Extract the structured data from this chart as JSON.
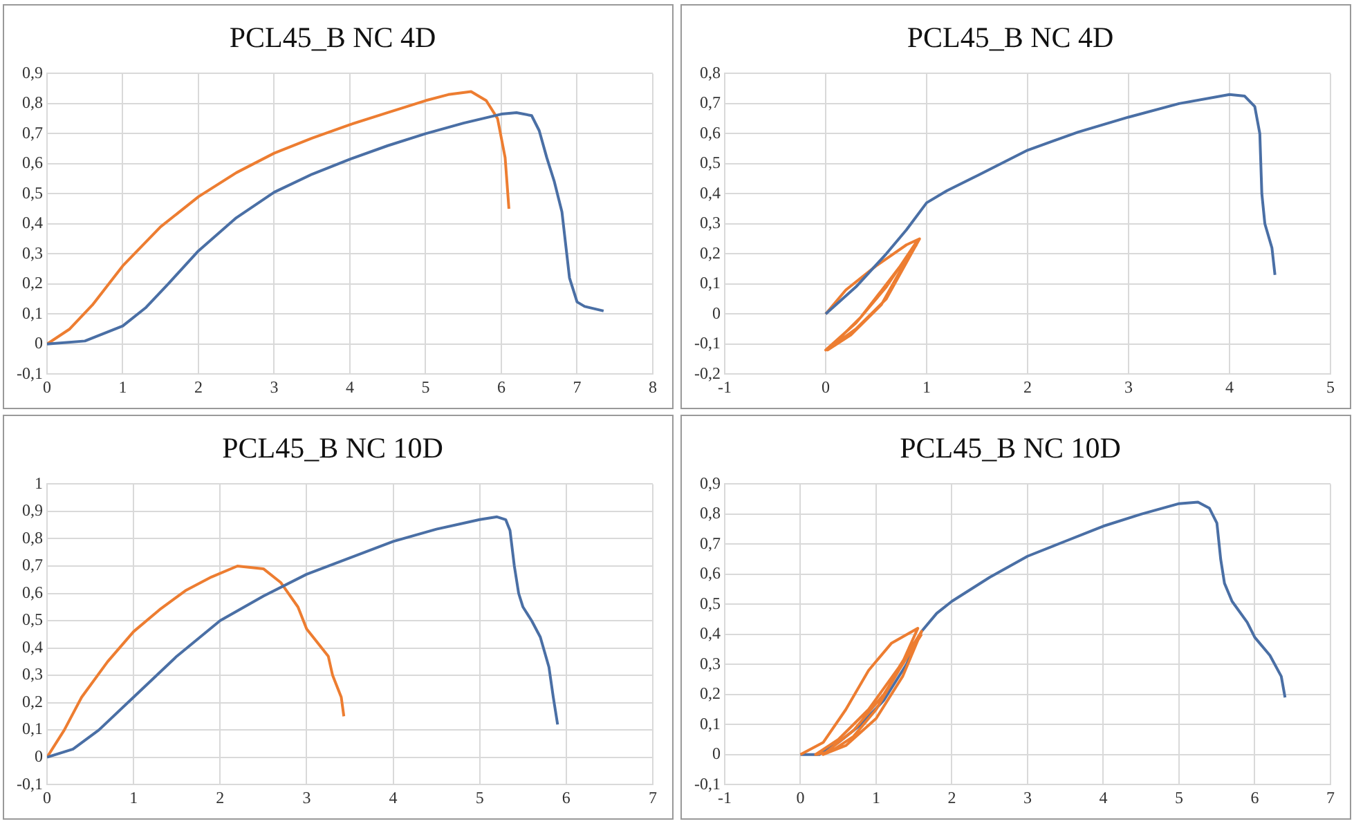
{
  "chart_data": [
    {
      "type": "line",
      "title": "PCL45_B NC 4D",
      "grid": true,
      "marker": "none",
      "legend": false,
      "xlim": [
        0,
        8
      ],
      "xticks": [
        0,
        1,
        2,
        3,
        4,
        5,
        6,
        7,
        8
      ],
      "ylim": [
        -0.1,
        0.9
      ],
      "yticks": [
        {
          "value": -0.1,
          "label": "-0,1"
        },
        {
          "value": 0,
          "label": "0"
        },
        {
          "value": 0.1,
          "label": "0,1"
        },
        {
          "value": 0.2,
          "label": "0,2"
        },
        {
          "value": 0.3,
          "label": "0,3"
        },
        {
          "value": 0.4,
          "label": "0,4"
        },
        {
          "value": 0.5,
          "label": "0,5"
        },
        {
          "value": 0.6,
          "label": "0,6"
        },
        {
          "value": 0.7,
          "label": "0,7"
        },
        {
          "value": 0.8,
          "label": "0,8"
        },
        {
          "value": 0.9,
          "label": "0,9"
        }
      ],
      "series": [
        {
          "color": "#4a6fa5",
          "x": [
            0,
            0.5,
            1,
            1.3,
            1.6,
            2,
            2.5,
            3,
            3.5,
            4,
            4.5,
            5,
            5.5,
            6,
            6.2,
            6.4,
            6.5,
            6.6,
            6.7,
            6.8,
            6.85,
            6.9,
            7,
            7.1,
            7.35
          ],
          "values": [
            0,
            0.01,
            0.06,
            0.12,
            0.2,
            0.31,
            0.42,
            0.505,
            0.565,
            0.615,
            0.66,
            0.7,
            0.735,
            0.765,
            0.77,
            0.76,
            0.71,
            0.62,
            0.54,
            0.44,
            0.33,
            0.22,
            0.14,
            0.125,
            0.11
          ]
        },
        {
          "color": "#ed7d31",
          "x": [
            0,
            0.3,
            0.6,
            1,
            1.5,
            2,
            2.5,
            3,
            3.5,
            4,
            4.5,
            5,
            5.3,
            5.6,
            5.8,
            5.95,
            6.05,
            6.1
          ],
          "values": [
            0,
            0.05,
            0.13,
            0.26,
            0.39,
            0.49,
            0.57,
            0.635,
            0.685,
            0.73,
            0.77,
            0.81,
            0.83,
            0.84,
            0.81,
            0.75,
            0.62,
            0.45
          ]
        }
      ]
    },
    {
      "type": "line",
      "title": "PCL45_B NC 4D",
      "grid": true,
      "marker": "none",
      "legend": false,
      "xlim": [
        -1,
        5
      ],
      "xticks": [
        -1,
        0,
        1,
        2,
        3,
        4,
        5
      ],
      "ylim": [
        -0.2,
        0.8
      ],
      "yticks": [
        {
          "value": -0.2,
          "label": "-0,2"
        },
        {
          "value": -0.1,
          "label": "-0,1"
        },
        {
          "value": 0,
          "label": "0"
        },
        {
          "value": 0.1,
          "label": "0,1"
        },
        {
          "value": 0.2,
          "label": "0,2"
        },
        {
          "value": 0.3,
          "label": "0,3"
        },
        {
          "value": 0.4,
          "label": "0,4"
        },
        {
          "value": 0.5,
          "label": "0,5"
        },
        {
          "value": 0.6,
          "label": "0,6"
        },
        {
          "value": 0.7,
          "label": "0,7"
        },
        {
          "value": 0.8,
          "label": "0,8"
        }
      ],
      "series": [
        {
          "color": "#4a6fa5",
          "x": [
            0,
            0.3,
            0.6,
            0.8,
            1,
            1.2,
            1.5,
            2,
            2.5,
            3,
            3.5,
            4,
            4.15,
            4.25,
            4.3,
            4.32,
            4.35,
            4.42,
            4.45
          ],
          "values": [
            0,
            0.09,
            0.2,
            0.28,
            0.37,
            0.41,
            0.46,
            0.545,
            0.605,
            0.655,
            0.7,
            0.73,
            0.725,
            0.69,
            0.6,
            0.4,
            0.3,
            0.22,
            0.13
          ]
        },
        {
          "color": "#ed7d31",
          "x": [
            0,
            0.2,
            0.5,
            0.8,
            0.93,
            0.6,
            0.3,
            0.05,
            0,
            0.3,
            0.6,
            0.9,
            0.55,
            0.25,
            0.02,
            0.35,
            0.65,
            0.9
          ],
          "values": [
            0,
            0.08,
            0.16,
            0.23,
            0.25,
            0.05,
            -0.05,
            -0.11,
            -0.12,
            -0.03,
            0.09,
            0.24,
            0.03,
            -0.07,
            -0.12,
            -0.01,
            0.12,
            0.23
          ]
        }
      ]
    },
    {
      "type": "line",
      "title": "PCL45_B NC 10D",
      "grid": true,
      "marker": "none",
      "legend": false,
      "xlim": [
        0,
        7
      ],
      "xticks": [
        0,
        1,
        2,
        3,
        4,
        5,
        6,
        7
      ],
      "ylim": [
        -0.1,
        1
      ],
      "yticks": [
        {
          "value": -0.1,
          "label": "-0,1"
        },
        {
          "value": 0,
          "label": "0"
        },
        {
          "value": 0.1,
          "label": "0,1"
        },
        {
          "value": 0.2,
          "label": "0,2"
        },
        {
          "value": 0.3,
          "label": "0,3"
        },
        {
          "value": 0.4,
          "label": "0,4"
        },
        {
          "value": 0.5,
          "label": "0,5"
        },
        {
          "value": 0.6,
          "label": "0,6"
        },
        {
          "value": 0.7,
          "label": "0,7"
        },
        {
          "value": 0.8,
          "label": "0,8"
        },
        {
          "value": 0.9,
          "label": "0,9"
        },
        {
          "value": 1,
          "label": "1"
        }
      ],
      "series": [
        {
          "color": "#4a6fa5",
          "x": [
            0,
            0.3,
            0.6,
            1,
            1.5,
            2,
            2.5,
            3,
            3.5,
            4,
            4.5,
            5,
            5.2,
            5.3,
            5.35,
            5.4,
            5.45,
            5.5,
            5.6,
            5.7,
            5.8,
            5.85,
            5.9
          ],
          "values": [
            0,
            0.03,
            0.1,
            0.22,
            0.37,
            0.5,
            0.59,
            0.67,
            0.73,
            0.79,
            0.835,
            0.87,
            0.88,
            0.87,
            0.83,
            0.7,
            0.6,
            0.55,
            0.5,
            0.44,
            0.33,
            0.22,
            0.12
          ]
        },
        {
          "color": "#ed7d31",
          "x": [
            0,
            0.2,
            0.4,
            0.7,
            1,
            1.3,
            1.6,
            1.9,
            2.2,
            2.5,
            2.7,
            2.9,
            3,
            3.1,
            3.25,
            3.3,
            3.4,
            3.43
          ],
          "values": [
            0,
            0.1,
            0.22,
            0.35,
            0.46,
            0.54,
            0.61,
            0.66,
            0.7,
            0.69,
            0.64,
            0.55,
            0.47,
            0.43,
            0.37,
            0.3,
            0.22,
            0.15
          ]
        }
      ]
    },
    {
      "type": "line",
      "title": "PCL45_B NC 10D",
      "grid": true,
      "marker": "none",
      "legend": false,
      "xlim": [
        -1,
        7
      ],
      "xticks": [
        -1,
        0,
        1,
        2,
        3,
        4,
        5,
        6,
        7
      ],
      "ylim": [
        -0.1,
        0.9
      ],
      "yticks": [
        {
          "value": -0.1,
          "label": "-0,1"
        },
        {
          "value": 0,
          "label": "0"
        },
        {
          "value": 0.1,
          "label": "0,1"
        },
        {
          "value": 0.2,
          "label": "0,2"
        },
        {
          "value": 0.3,
          "label": "0,3"
        },
        {
          "value": 0.4,
          "label": "0,4"
        },
        {
          "value": 0.5,
          "label": "0,5"
        },
        {
          "value": 0.6,
          "label": "0,6"
        },
        {
          "value": 0.7,
          "label": "0,7"
        },
        {
          "value": 0.8,
          "label": "0,8"
        },
        {
          "value": 0.9,
          "label": "0,9"
        }
      ],
      "series": [
        {
          "color": "#ed7d31",
          "x": [
            0,
            0.3,
            0.6,
            0.9,
            1.2,
            1.55,
            1.3,
            1,
            0.7,
            0.4,
            0.2,
            0.5,
            0.9,
            1.3,
            1.6,
            1.35,
            1,
            0.6,
            0.3,
            0.7,
            1.1,
            1.6
          ],
          "values": [
            0,
            0.04,
            0.15,
            0.28,
            0.37,
            0.42,
            0.28,
            0.15,
            0.06,
            0.01,
            0,
            0.05,
            0.15,
            0.29,
            0.41,
            0.26,
            0.12,
            0.03,
            0,
            0.08,
            0.2,
            0.4
          ]
        },
        {
          "color": "#4a6fa5",
          "x": [
            0,
            0.25,
            0.5,
            0.8,
            1.1,
            1.4,
            1.6,
            1.8,
            2,
            2.5,
            3,
            3.5,
            4,
            4.5,
            5,
            5.25,
            5.4,
            5.5,
            5.55,
            5.6,
            5.7,
            5.9,
            6,
            6.2,
            6.35,
            6.4
          ],
          "values": [
            0,
            0,
            0.04,
            0.1,
            0.18,
            0.3,
            0.41,
            0.47,
            0.51,
            0.59,
            0.66,
            0.71,
            0.76,
            0.8,
            0.835,
            0.84,
            0.82,
            0.77,
            0.65,
            0.57,
            0.51,
            0.44,
            0.39,
            0.33,
            0.26,
            0.19
          ]
        }
      ]
    }
  ]
}
